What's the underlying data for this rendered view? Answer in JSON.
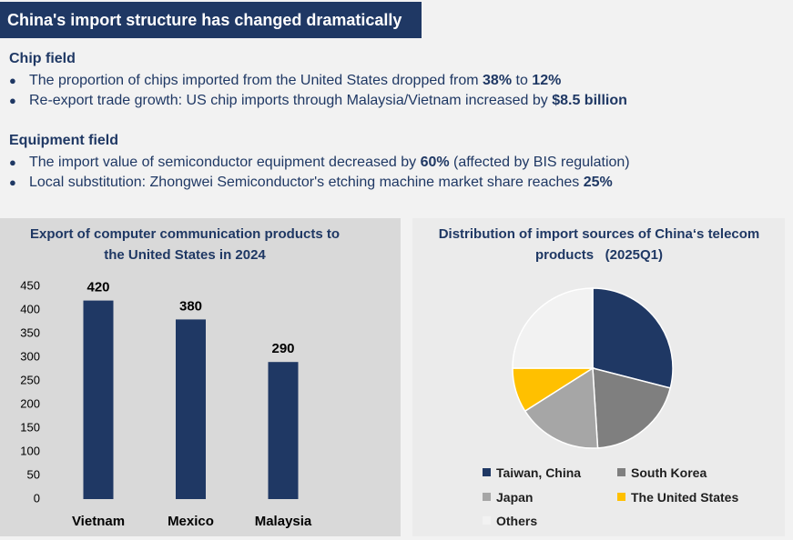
{
  "header": {
    "title": "China's import structure has changed dramatically"
  },
  "sections": [
    {
      "title": "Chip field",
      "bullets": [
        {
          "parts": [
            "The proportion of chips imported from the United States dropped from ",
            "38%",
            " to ",
            "12%"
          ]
        },
        {
          "parts": [
            "Re-export trade growth: US chip imports through Malaysia/Vietnam increased by ",
            "$8.5 billion"
          ]
        }
      ]
    },
    {
      "title": "Equipment field",
      "bullets": [
        {
          "parts": [
            "The import value of semiconductor equipment decreased by ",
            "60%",
            " (affected by BIS regulation)"
          ]
        },
        {
          "parts": [
            "Local substitution: Zhongwei Semiconductor's etching machine market share reaches ",
            "25%"
          ]
        }
      ]
    }
  ],
  "chart_data": [
    {
      "type": "bar",
      "title": "Export of computer communication products to the United States in 2024",
      "categories": [
        "Vietnam",
        "Mexico",
        "Malaysia"
      ],
      "values": [
        420,
        380,
        290
      ],
      "color": "#1f3864",
      "ylim": [
        0,
        450
      ],
      "yticks": [
        0,
        50,
        100,
        150,
        200,
        250,
        300,
        350,
        400,
        450
      ],
      "grid": false
    },
    {
      "type": "pie",
      "title": "Distribution of import sources of China‘s telecom products   (2025Q1)",
      "categories": [
        "Taiwan, China",
        "South Korea",
        "Japan",
        "The United States",
        "Others"
      ],
      "values": [
        29,
        20,
        17,
        9,
        25
      ],
      "colors": [
        "#1f3864",
        "#7f7f7f",
        "#a6a6a6",
        "#ffc000",
        "#f2f2f2"
      ]
    }
  ]
}
